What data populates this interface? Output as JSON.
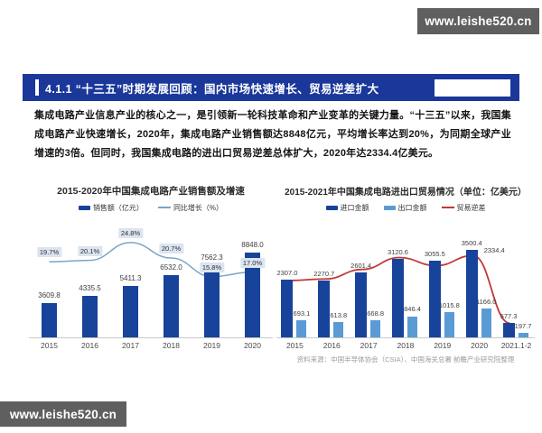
{
  "watermark_top": "www.leishe520.cn",
  "watermark_bottom": "www.leishe520.cn",
  "header": {
    "title": "4.1.1  “十三五”时期发展回顾：国内市场快速增长、贸易逆差扩大"
  },
  "body_text": "集成电路产业信息产业的核心之一，是引领新一轮科技革命和产业变革的关键力量。“十三五”以来，我国集成电路产业快速增长，2020年，集成电路产业销售额达8848亿元，平均增长率达到20%，为同期全球产业增速的3倍。但同时，我国集成电路的进出口贸易逆差总体扩大，2020年达2334.4亿美元。",
  "footnote": "资料来源：中国半导体协会（CSIA）、中国海关总署 前瞻产业研究院整理",
  "colors": {
    "title_bar_bg": "#1a3799",
    "navy_bar": "#17439b",
    "light_blue_bar": "#5b9bd5",
    "growth_line": "#7da4c6",
    "deficit_line": "#bf3a36",
    "percent_label_bg": "#dbe4f0",
    "watermark_bg": "#5f5f5f"
  },
  "chart_data": [
    {
      "type": "bar",
      "subtype": "bar+line",
      "title": "2015-2020年中国集成电路产业销售额及增速",
      "categories": [
        "2015",
        "2016",
        "2017",
        "2018",
        "2019",
        "2020"
      ],
      "series": [
        {
          "name": "销售额（亿元）",
          "type": "bar",
          "values": [
            3609.8,
            4335.5,
            5411.3,
            6532.0,
            7562.3,
            8848.0
          ],
          "labels": [
            "3609.8",
            "4335.5",
            "5411.3",
            "6532.0",
            "7562.3",
            "8848.0"
          ],
          "color": "#17439b"
        },
        {
          "name": "同比增长（%）",
          "type": "line",
          "values": [
            19.7,
            20.1,
            24.8,
            20.7,
            15.8,
            17.0
          ],
          "labels": [
            "19.7%",
            "20.1%",
            "24.8%",
            "20.7%",
            "15.8%",
            "17.0%"
          ],
          "color": "#7da4c6"
        }
      ],
      "bar_ylim": [
        0,
        9900
      ],
      "line_ylim": [
        0,
        30
      ],
      "legend_position": "top",
      "grid": false
    },
    {
      "type": "bar",
      "subtype": "grouped-bar+line",
      "title": "2015-2021年中国集成电路进出口贸易情况（单位：亿美元）",
      "categories": [
        "2015",
        "2016",
        "2017",
        "2018",
        "2019",
        "2020",
        "2021.1-2"
      ],
      "series": [
        {
          "name": "进口金额",
          "type": "bar",
          "values": [
            2307.0,
            2270.7,
            2601.4,
            3120.6,
            3055.5,
            3500.4,
            577.3
          ],
          "labels": [
            "2307.0",
            "2270.7",
            "2601.4",
            "3120.6",
            "3055.5",
            "3500.4",
            "577.3"
          ],
          "color": "#17439b"
        },
        {
          "name": "出口金额",
          "type": "bar",
          "values": [
            693.1,
            613.8,
            668.8,
            846.4,
            1015.8,
            1166.0,
            197.7
          ],
          "labels": [
            "693.1",
            "613.8",
            "668.8",
            "846.4",
            "1015.8",
            "1166.0",
            "197.7"
          ],
          "color": "#5b9bd5"
        },
        {
          "name": "贸易逆差",
          "type": "line",
          "values": [
            1613.9,
            1656.9,
            1932.6,
            2274.2,
            2039.7,
            2334.4,
            379.6
          ],
          "labels": [
            null,
            null,
            null,
            null,
            null,
            "2334.4",
            null
          ],
          "color": "#bf3a36",
          "note": "line values estimated (import minus export); only 2020 value 2334.4 labeled in chart"
        }
      ],
      "bar_ylim": [
        0,
        3600
      ],
      "line_ylim": [
        0,
        2600
      ],
      "legend_position": "top",
      "grid": false
    }
  ]
}
